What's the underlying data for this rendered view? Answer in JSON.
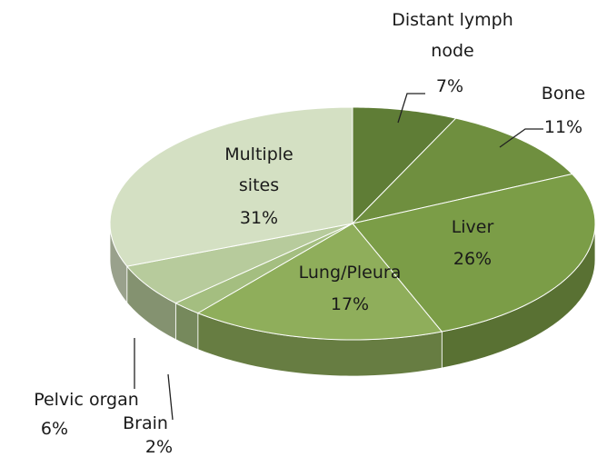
{
  "chart_data": {
    "type": "pie",
    "categories": [
      "Distant lymph node",
      "Bone",
      "Liver",
      "Lung/Pleura",
      "Brain",
      "Pelvic organ",
      "Multiple sites"
    ],
    "values": [
      7,
      11,
      26,
      17,
      2,
      6,
      31
    ],
    "value_labels": [
      "7%",
      "11%",
      "26%",
      "17%",
      "2%",
      "6%",
      "31%"
    ],
    "colors": [
      "#5f7d36",
      "#6f8f3f",
      "#7b9d47",
      "#8fae5b",
      "#a4be80",
      "#b7cb9c",
      "#d4e0c3"
    ]
  }
}
